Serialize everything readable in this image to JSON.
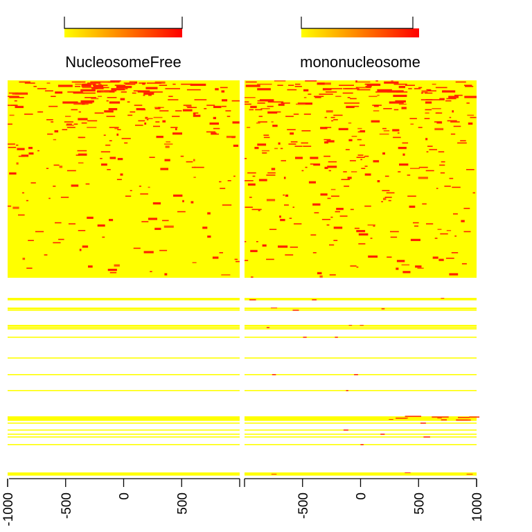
{
  "chart_data": [
    {
      "type": "heatmap",
      "title": "NucleosomeFree",
      "xlabel": "",
      "ylabel": "",
      "xlim": [
        -1000,
        1000
      ],
      "x_ticks": [
        -1000,
        -500,
        0,
        500
      ],
      "x_tick_labels": [
        "-1000",
        "-500",
        "0",
        "500"
      ],
      "colorscale": {
        "low": "#ffff00",
        "high": "#ff0000"
      },
      "colorbar_labels": [
        "",
        ""
      ],
      "blocks": [
        {
          "name": "",
          "rows": "dense",
          "signal": "high at top, sparse toward bottom",
          "peak_x": -100
        },
        {
          "name": "",
          "rows": "sparse",
          "signal": "none"
        }
      ]
    },
    {
      "type": "heatmap",
      "title": "mononucleosome",
      "xlabel": "",
      "ylabel": "",
      "xlim": [
        -1000,
        1000
      ],
      "x_ticks": [
        -500,
        0,
        500,
        1000
      ],
      "x_tick_labels": [
        "-500",
        "0",
        "500",
        "1000"
      ],
      "colorscale": {
        "low": "#ffff00",
        "high": "#ff0000"
      },
      "colorbar_labels": [
        "",
        ""
      ],
      "blocks": [
        {
          "name": "",
          "rows": "dense",
          "signal": "scattered, concentrated at top",
          "peak_x": null
        },
        {
          "name": "",
          "rows": "sparse",
          "signal": "weak scattered"
        }
      ]
    }
  ]
}
